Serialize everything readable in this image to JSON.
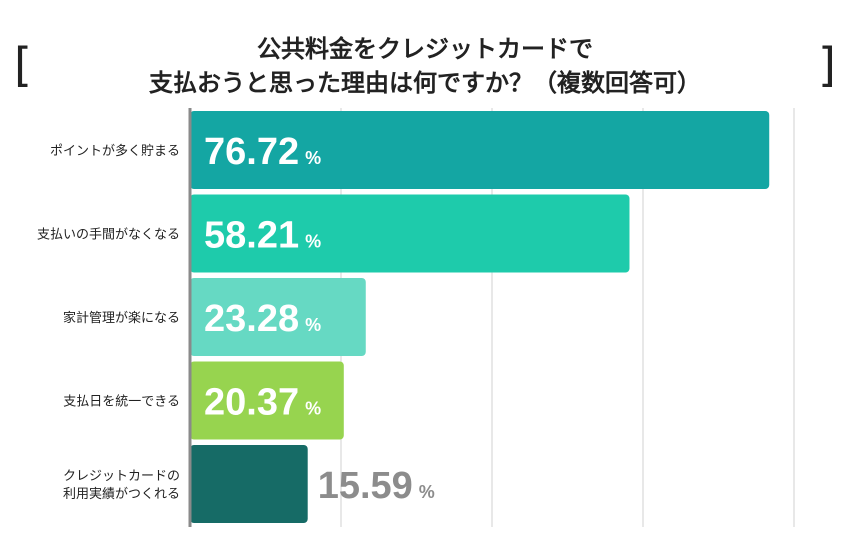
{
  "title": {
    "bracket_left": "[",
    "bracket_right": "]",
    "line1": "公共料金をクレジットカードで",
    "line2": "支払おうと思った理由は何ですか？（複数回答可）"
  },
  "chart_data": {
    "type": "bar",
    "orientation": "horizontal",
    "title": "公共料金をクレジットカードで支払おうと思った理由は何ですか？（複数回答可）",
    "unit": "%",
    "xlim": [
      0,
      100
    ],
    "grid": true,
    "categories": [
      [
        "ポイントが多く貯まる"
      ],
      [
        "支払いの手間がなくなる"
      ],
      [
        "家計管理が楽になる"
      ],
      [
        "支払日を統一できる"
      ],
      [
        "クレジットカードの",
        "利用実績がつくれる"
      ]
    ],
    "values": [
      76.72,
      58.21,
      23.28,
      20.37,
      15.59
    ],
    "value_labels": [
      "76.72",
      "58.21",
      "23.28",
      "20.37",
      "15.59"
    ],
    "colors": [
      "#14a6a3",
      "#1ecbab",
      "#66d9c3",
      "#97d44f",
      "#166b66"
    ],
    "label_colors": [
      "#ffffff",
      "#ffffff",
      "#ffffff",
      "#ffffff",
      "#8c8c8c"
    ]
  }
}
